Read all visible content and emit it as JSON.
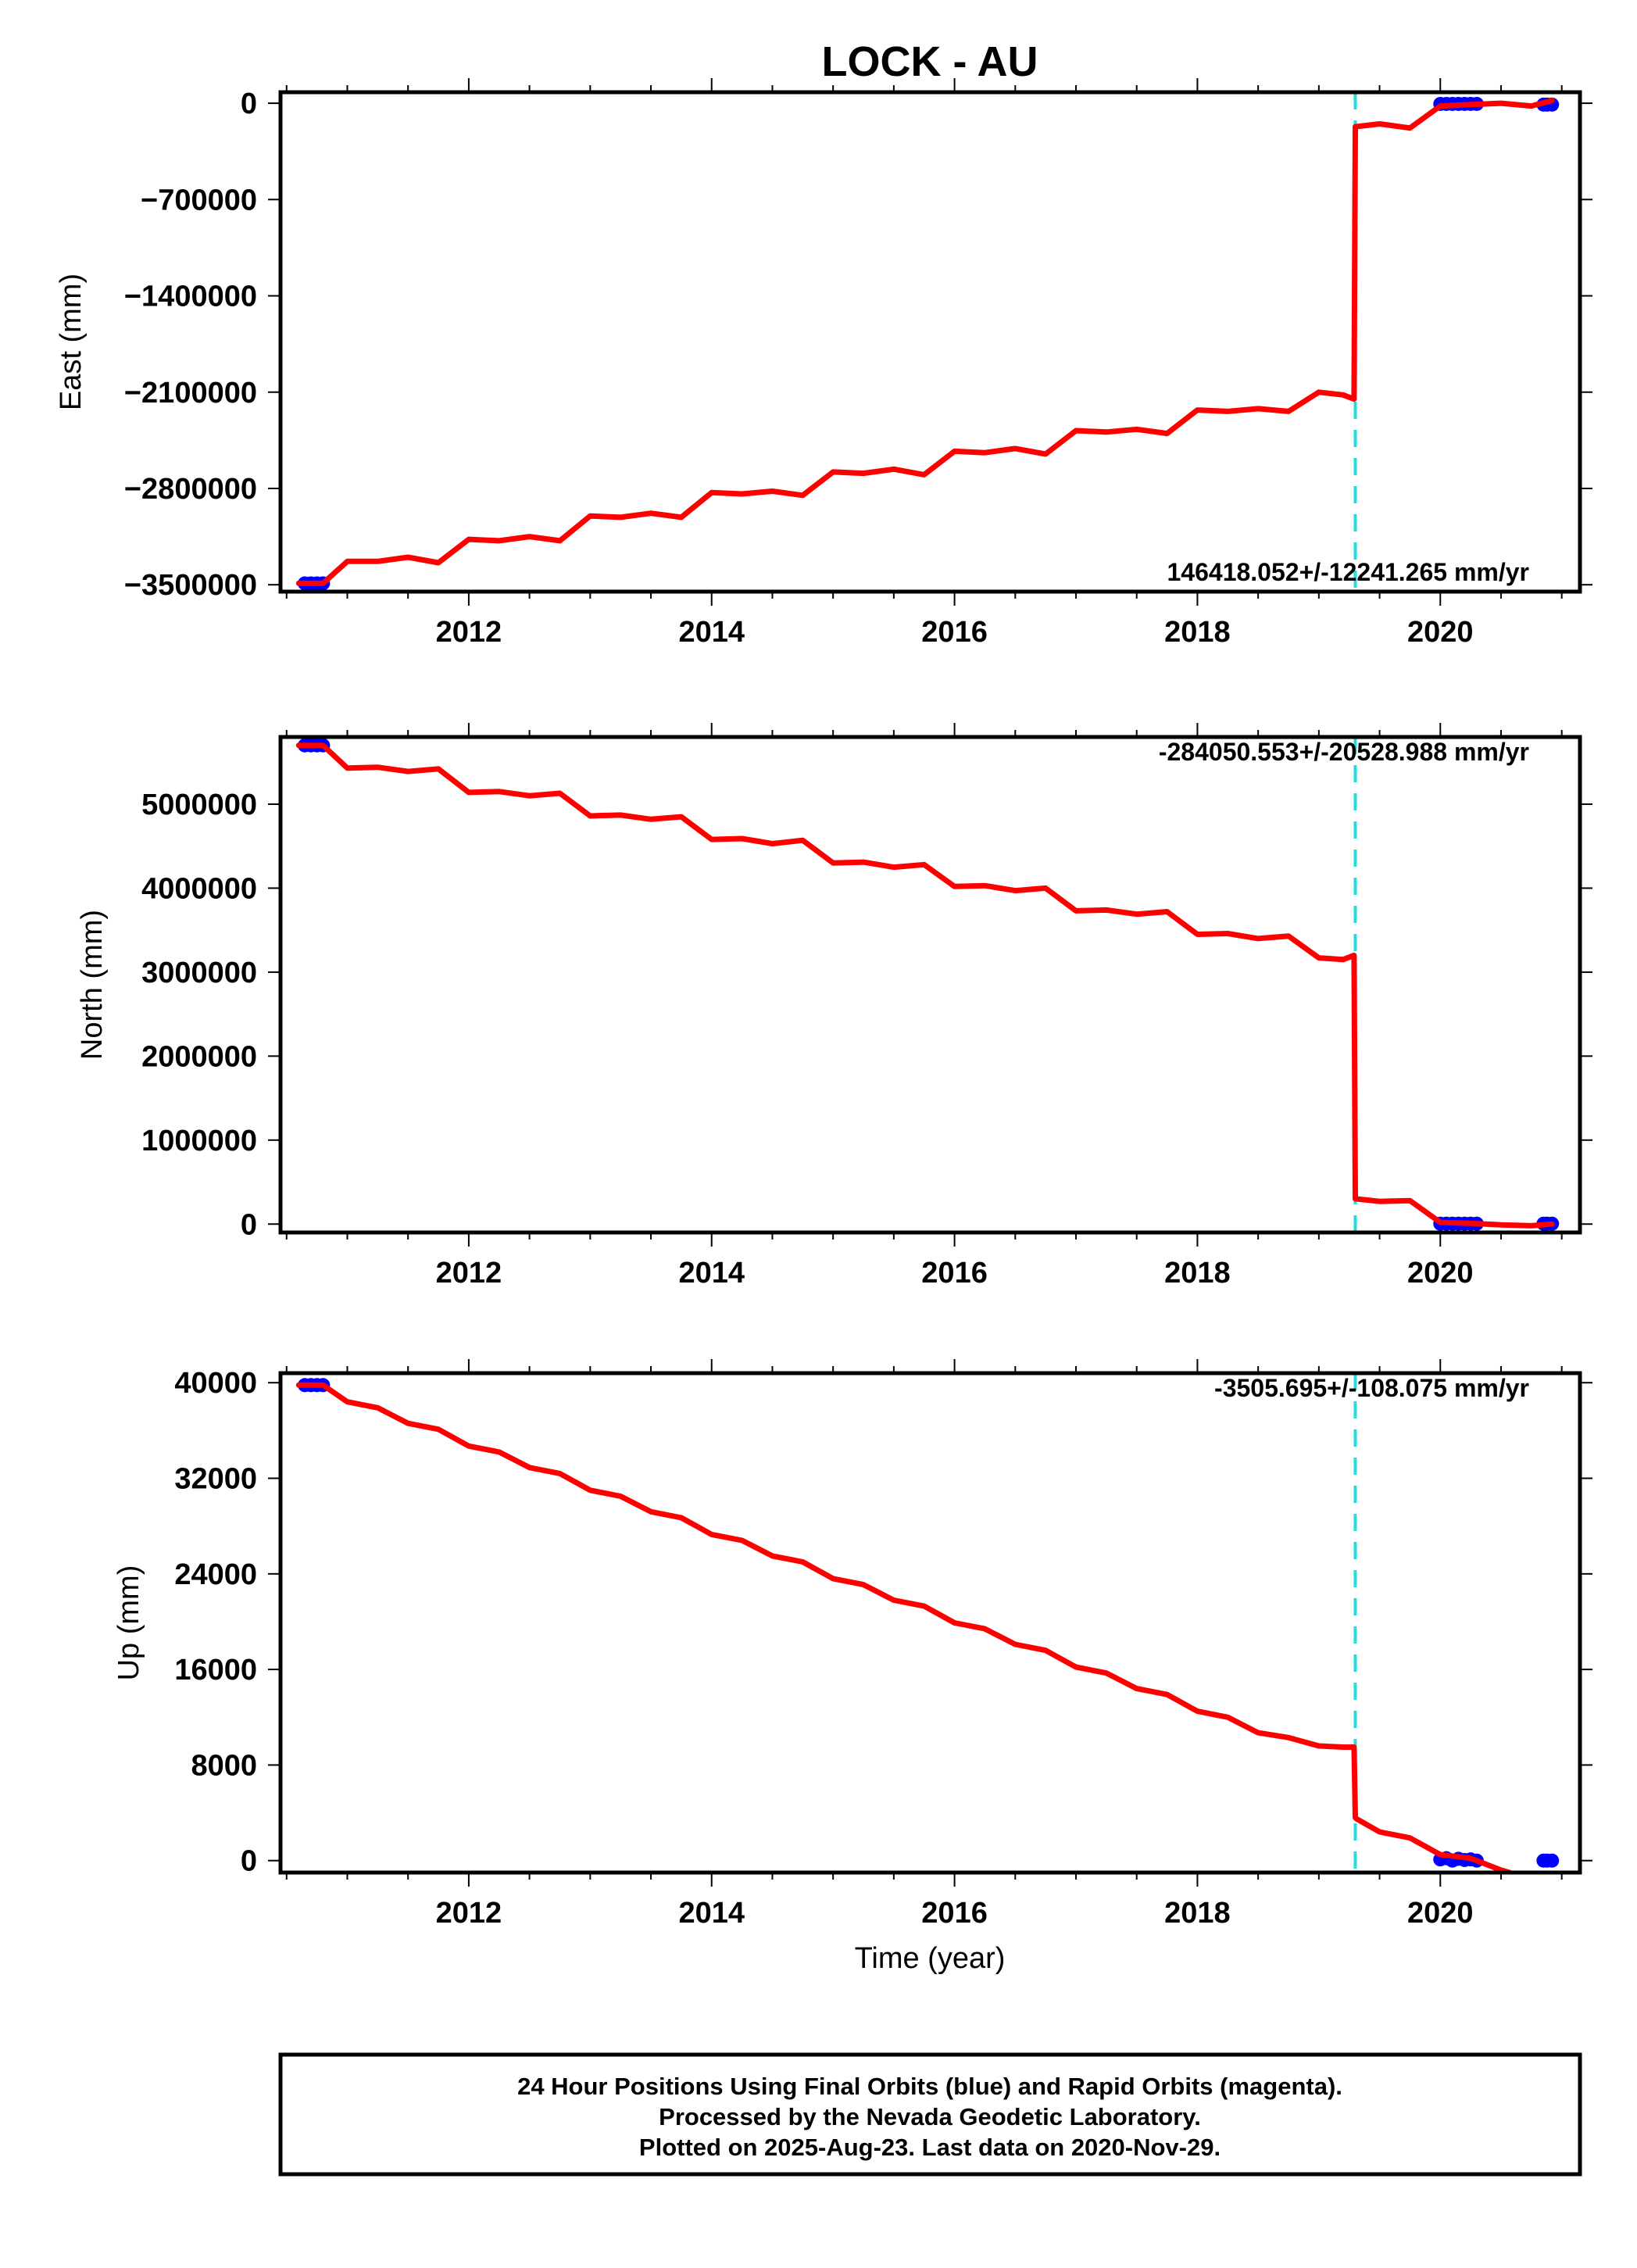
{
  "title": "LOCK - AU",
  "xlabel": "Time (year)",
  "x_tick_labels": [
    "2012",
    "2014",
    "2016",
    "2018",
    "2020"
  ],
  "footer": {
    "line1": "24 Hour Positions Using Final Orbits (blue) and Rapid Orbits (magenta).",
    "line2": "Processed by the Nevada Geodetic Laboratory.",
    "line3": "Plotted on 2025-Aug-23. Last data on 2020-Nov-29."
  },
  "colors": {
    "model": "#ff0000",
    "final_orbits": "#0000ff",
    "event_line": "#22dddd",
    "frame": "#000000"
  },
  "chart_data": [
    {
      "type": "line",
      "name": "east",
      "ylabel": "East (mm)",
      "xlim": [
        2010.45,
        2021.15
      ],
      "ylim": [
        -3550000,
        80000
      ],
      "xticks": [
        2012,
        2014,
        2016,
        2018,
        2020
      ],
      "yticks": [
        0,
        -700000,
        -1400000,
        -2100000,
        -2800000,
        -3500000
      ],
      "ytick_labels": [
        "0",
        "−700000",
        "−1400000",
        "−2100000",
        "−2800000",
        "−3500000"
      ],
      "rate_label": "146418.052+/-12241.265 mm/yr",
      "rate_position": "bottom-right",
      "event_x": 2019.3,
      "model": {
        "x": [
          2010.6,
          2010.8,
          2011.0,
          2011.25,
          2011.5,
          2011.75,
          2012.0,
          2012.25,
          2012.5,
          2012.75,
          2013.0,
          2013.25,
          2013.5,
          2013.75,
          2014.0,
          2014.25,
          2014.5,
          2014.75,
          2015.0,
          2015.25,
          2015.5,
          2015.75,
          2016.0,
          2016.25,
          2016.5,
          2016.75,
          2017.0,
          2017.25,
          2017.5,
          2017.75,
          2018.0,
          2018.25,
          2018.5,
          2018.75,
          2019.0,
          2019.2,
          2019.29,
          2019.3,
          2019.31,
          2019.5,
          2019.75,
          2020.0,
          2020.25,
          2020.5,
          2020.75,
          2020.92
        ],
        "y": [
          -3490000,
          -3490000,
          -3330000,
          -3330000,
          -3300000,
          -3340000,
          -3170000,
          -3180000,
          -3150000,
          -3180000,
          -3000000,
          -3010000,
          -2980000,
          -3010000,
          -2830000,
          -2840000,
          -2820000,
          -2850000,
          -2680000,
          -2690000,
          -2660000,
          -2700000,
          -2530000,
          -2540000,
          -2510000,
          -2550000,
          -2380000,
          -2390000,
          -2370000,
          -2400000,
          -2230000,
          -2240000,
          -2220000,
          -2240000,
          -2100000,
          -2120000,
          -2150000,
          -170000,
          -170000,
          -150000,
          -180000,
          -20000,
          -10000,
          0,
          -20000,
          20000
        ]
      },
      "final_orbits": {
        "x": [
          2010.65,
          2010.7,
          2010.75,
          2010.8,
          2020.0,
          2020.05,
          2020.1,
          2020.15,
          2020.2,
          2020.25,
          2020.3,
          2020.85,
          2020.88,
          2020.92
        ],
        "y": [
          -3490000,
          -3490000,
          -3490000,
          -3490000,
          -5000,
          -5000,
          -5000,
          -5000,
          -5000,
          -5000,
          -5000,
          -10000,
          -10000,
          -10000
        ]
      }
    },
    {
      "type": "line",
      "name": "north",
      "ylabel": "North (mm)",
      "xlim": [
        2010.45,
        2021.15
      ],
      "ylim": [
        -100000,
        5800000
      ],
      "xticks": [
        2012,
        2014,
        2016,
        2018,
        2020
      ],
      "yticks": [
        0,
        1000000,
        2000000,
        3000000,
        4000000,
        5000000
      ],
      "ytick_labels": [
        "0",
        "1000000",
        "2000000",
        "3000000",
        "4000000",
        "5000000"
      ],
      "rate_label": "-284050.553+/-20528.988 mm/yr",
      "rate_position": "top-right",
      "event_x": 2019.3,
      "model": {
        "x": [
          2010.6,
          2010.8,
          2011.0,
          2011.25,
          2011.5,
          2011.75,
          2012.0,
          2012.25,
          2012.5,
          2012.75,
          2013.0,
          2013.25,
          2013.5,
          2013.75,
          2014.0,
          2014.25,
          2014.5,
          2014.75,
          2015.0,
          2015.25,
          2015.5,
          2015.75,
          2016.0,
          2016.25,
          2016.5,
          2016.75,
          2017.0,
          2017.25,
          2017.5,
          2017.75,
          2018.0,
          2018.25,
          2018.5,
          2018.75,
          2019.0,
          2019.2,
          2019.29,
          2019.3,
          2019.31,
          2019.5,
          2019.75,
          2020.0,
          2020.25,
          2020.5,
          2020.75,
          2020.92
        ],
        "y": [
          5700000,
          5700000,
          5430000,
          5440000,
          5390000,
          5420000,
          5140000,
          5150000,
          5100000,
          5130000,
          4860000,
          4870000,
          4820000,
          4850000,
          4580000,
          4590000,
          4530000,
          4570000,
          4300000,
          4310000,
          4250000,
          4280000,
          4020000,
          4030000,
          3970000,
          4000000,
          3730000,
          3740000,
          3690000,
          3720000,
          3450000,
          3460000,
          3400000,
          3430000,
          3170000,
          3150000,
          3200000,
          300000,
          300000,
          270000,
          280000,
          20000,
          10000,
          -10000,
          -20000,
          0
        ]
      },
      "final_orbits": {
        "x": [
          2010.65,
          2010.7,
          2010.75,
          2010.8,
          2020.0,
          2020.05,
          2020.1,
          2020.15,
          2020.2,
          2020.25,
          2020.3,
          2020.85,
          2020.88,
          2020.92
        ],
        "y": [
          5700000,
          5700000,
          5700000,
          5700000,
          5000,
          5000,
          5000,
          5000,
          5000,
          5000,
          5000,
          5000,
          5000,
          5000
        ]
      }
    },
    {
      "type": "line",
      "name": "up",
      "ylabel": "Up (mm)",
      "xlim": [
        2010.45,
        2021.15
      ],
      "ylim": [
        -1000,
        40800
      ],
      "xticks": [
        2012,
        2014,
        2016,
        2018,
        2020
      ],
      "yticks": [
        0,
        8000,
        16000,
        24000,
        32000,
        40000
      ],
      "ytick_labels": [
        "0",
        "8000",
        "16000",
        "24000",
        "32000",
        "40000"
      ],
      "rate_label": "-3505.695+/-108.075 mm/yr",
      "rate_position": "top-right",
      "event_x": 2019.3,
      "model": {
        "x": [
          2010.6,
          2010.8,
          2011.0,
          2011.25,
          2011.5,
          2011.75,
          2012.0,
          2012.25,
          2012.5,
          2012.75,
          2013.0,
          2013.25,
          2013.5,
          2013.75,
          2014.0,
          2014.25,
          2014.5,
          2014.75,
          2015.0,
          2015.25,
          2015.5,
          2015.75,
          2016.0,
          2016.25,
          2016.5,
          2016.75,
          2017.0,
          2017.25,
          2017.5,
          2017.75,
          2018.0,
          2018.25,
          2018.5,
          2018.75,
          2019.0,
          2019.2,
          2019.29,
          2019.3,
          2019.31,
          2019.5,
          2019.75,
          2020.0,
          2020.25,
          2020.5,
          2020.57
        ],
        "y": [
          39800,
          39800,
          38400,
          37900,
          36600,
          36100,
          34700,
          34200,
          32900,
          32400,
          31000,
          30500,
          29200,
          28700,
          27300,
          26800,
          25500,
          25000,
          23600,
          23100,
          21800,
          21300,
          19900,
          19400,
          18100,
          17600,
          16200,
          15700,
          14400,
          13900,
          12500,
          12000,
          10700,
          10300,
          9600,
          9500,
          9500,
          3600,
          3500,
          2400,
          1900,
          500,
          200,
          -800,
          -1000
        ]
      },
      "final_orbits": {
        "x": [
          2010.65,
          2010.7,
          2010.75,
          2010.8,
          2020.0,
          2020.05,
          2020.1,
          2020.15,
          2020.2,
          2020.25,
          2020.3,
          2020.85,
          2020.88,
          2020.92
        ],
        "y": [
          39800,
          39800,
          39800,
          39800,
          100,
          200,
          0,
          150,
          50,
          100,
          0,
          0,
          0,
          0
        ]
      }
    }
  ]
}
